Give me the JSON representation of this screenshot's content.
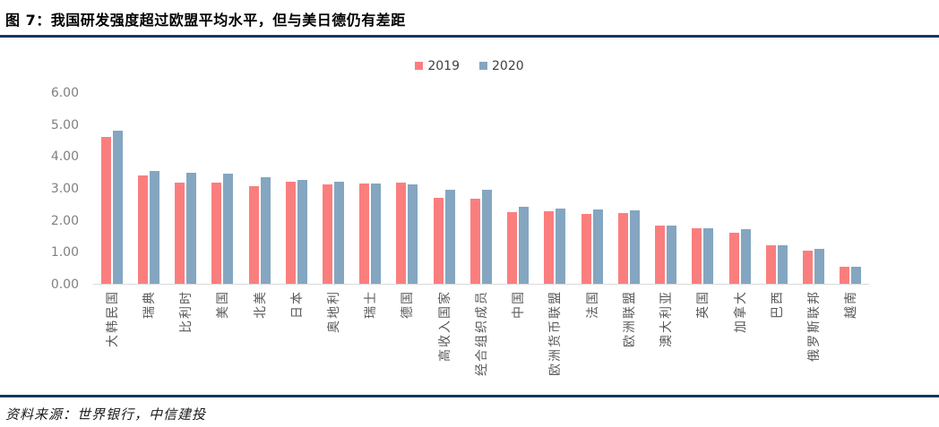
{
  "page": {
    "title": "图 7：我国研发强度超过欧盟平均水平，但与美日德仍有差距",
    "source_note": "资料来源：世界银行，中信建投"
  },
  "colors": {
    "accent_rule": "#17375E",
    "axis_text": "#7F7F7F",
    "category_text": "#595959",
    "baseline": "#D9D9D9",
    "series_2019": "#FB7E7E",
    "series_2020": "#84A6C0"
  },
  "chart_data": {
    "type": "bar",
    "title": "图 7：我国研发强度超过欧盟平均水平，但与美日德仍有差距",
    "xlabel": "",
    "ylabel": "",
    "ylim": [
      0,
      6
    ],
    "yticks": [
      "6.00",
      "5.00",
      "4.00",
      "3.00",
      "2.00",
      "1.00",
      "0.00"
    ],
    "grid": false,
    "legend_position": "top-center",
    "categories": [
      "大韩民国",
      "瑞典",
      "比利时",
      "美国",
      "北美",
      "日本",
      "奥地利",
      "瑞士",
      "德国",
      "高收入国家",
      "经合组织成员",
      "中国",
      "欧洲货币联盟",
      "法国",
      "欧洲联盟",
      "澳大利亚",
      "英国",
      "加拿大",
      "巴西",
      "俄罗斯联邦",
      "越南"
    ],
    "series": [
      {
        "name": "2019",
        "color": "#FB7E7E",
        "values": [
          4.63,
          3.41,
          3.17,
          3.17,
          3.07,
          3.22,
          3.13,
          3.15,
          3.17,
          2.7,
          2.68,
          2.24,
          2.27,
          2.19,
          2.22,
          1.84,
          1.74,
          1.62,
          1.21,
          1.04,
          0.54
        ]
      },
      {
        "name": "2020",
        "color": "#84A6C0",
        "values": [
          4.81,
          3.55,
          3.5,
          3.46,
          3.35,
          3.28,
          3.2,
          3.15,
          3.13,
          2.96,
          2.95,
          2.41,
          2.38,
          2.35,
          2.32,
          1.83,
          1.74,
          1.73,
          1.22,
          1.1,
          0.53
        ]
      }
    ]
  }
}
